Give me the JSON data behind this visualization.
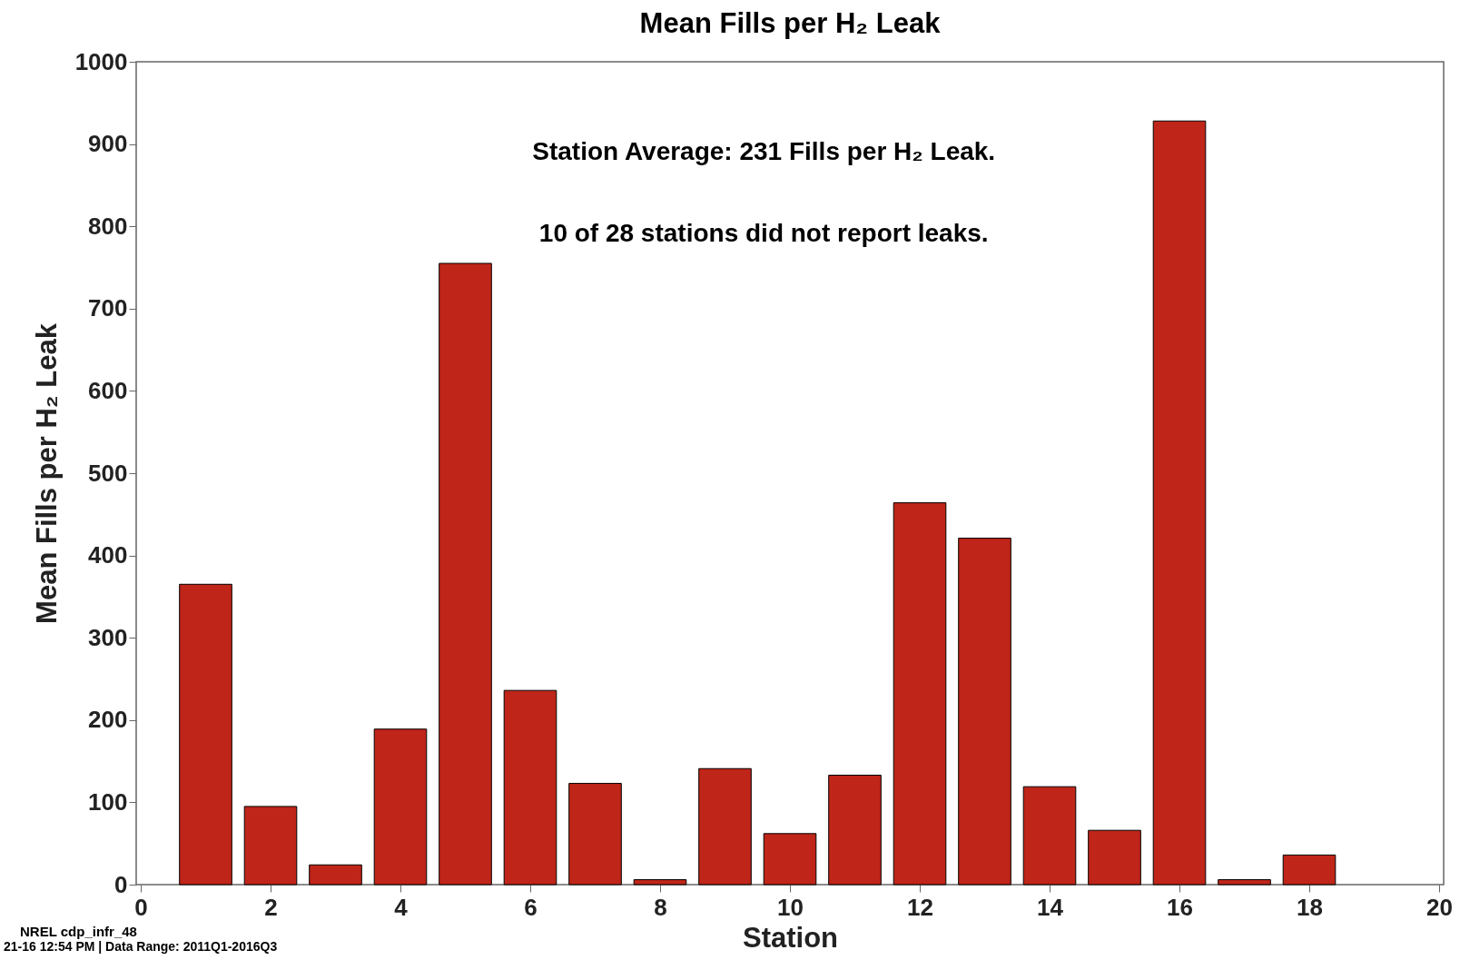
{
  "chart_data": {
    "type": "bar",
    "title": "Mean Fills per H₂ Leak",
    "xlabel": "Station",
    "ylabel": "Mean Fills per H₂ Leak",
    "x": [
      1,
      2,
      3,
      4,
      5,
      6,
      7,
      8,
      9,
      10,
      11,
      12,
      13,
      14,
      15,
      16,
      17,
      18
    ],
    "values": [
      365,
      95,
      24,
      189,
      755,
      236,
      123,
      6,
      141,
      62,
      133,
      464,
      421,
      119,
      66,
      928,
      6,
      36
    ],
    "color": "#bf2519",
    "xlim": [
      0,
      20
    ],
    "xticks": [
      0,
      2,
      4,
      6,
      8,
      10,
      12,
      14,
      16,
      18,
      20
    ],
    "ylim": [
      0,
      1000
    ],
    "yticks": [
      0,
      100,
      200,
      300,
      400,
      500,
      600,
      700,
      800,
      900,
      1000
    ],
    "annotations": [
      "Station Average: 231 Fills per H₂ Leak.",
      "10 of 28 stations did not report leaks.",
      "NREL cdp_infr_48",
      "21-16 12:54 PM | Data Range: 2011Q1-2016Q3"
    ]
  }
}
